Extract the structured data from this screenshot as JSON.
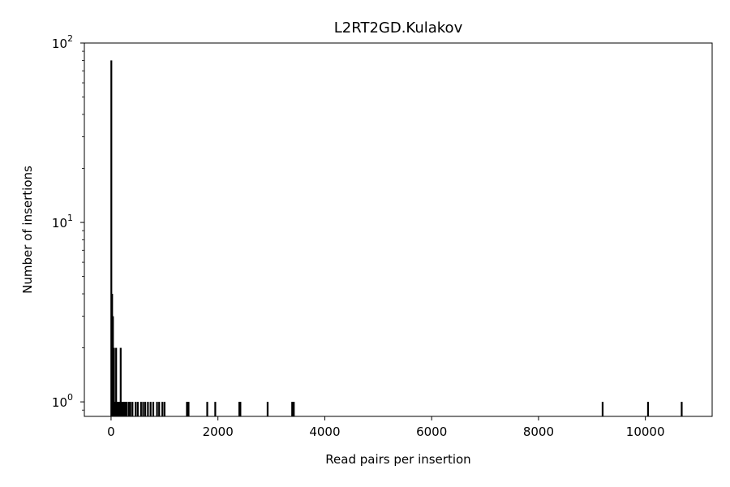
{
  "chart_data": {
    "type": "bar",
    "title": "L2RT2GD.Kulakov",
    "xlabel": "Read pairs per insertion",
    "ylabel": "Number of insertions",
    "xlim": [
      -500,
      11250
    ],
    "ylim": [
      0.83,
      100
    ],
    "yscale": "log",
    "grid": false,
    "x_ticks": [
      0,
      2000,
      4000,
      6000,
      8000,
      10000
    ],
    "y_ticks": [
      {
        "value": 1,
        "base": "10",
        "exp": "0"
      },
      {
        "value": 10,
        "base": "10",
        "exp": "1"
      },
      {
        "value": 100,
        "base": "10",
        "exp": "2"
      }
    ],
    "bar_color": "#000000",
    "x": [
      5,
      20,
      35,
      55,
      75,
      95,
      110,
      130,
      160,
      180,
      200,
      230,
      260,
      290,
      330,
      360,
      400,
      460,
      500,
      560,
      600,
      640,
      690,
      740,
      790,
      860,
      900,
      960,
      1000,
      1420,
      1450,
      1800,
      1950,
      2400,
      2420,
      2930,
      3390,
      3420,
      9200,
      10050,
      10680
    ],
    "values": [
      80,
      4,
      3,
      2,
      1,
      2,
      1,
      1,
      1,
      2,
      1,
      1,
      1,
      1,
      1,
      1,
      1,
      1,
      1,
      1,
      1,
      1,
      1,
      1,
      1,
      1,
      1,
      1,
      1,
      1,
      1,
      1,
      1,
      1,
      1,
      1,
      1,
      1,
      1,
      1,
      1
    ]
  }
}
